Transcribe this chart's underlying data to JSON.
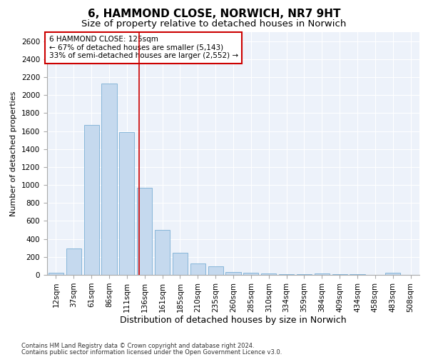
{
  "title1": "6, HAMMOND CLOSE, NORWICH, NR7 9HT",
  "title2": "Size of property relative to detached houses in Norwich",
  "xlabel": "Distribution of detached houses by size in Norwich",
  "ylabel": "Number of detached properties",
  "categories": [
    "12sqm",
    "37sqm",
    "61sqm",
    "86sqm",
    "111sqm",
    "136sqm",
    "161sqm",
    "185sqm",
    "210sqm",
    "235sqm",
    "260sqm",
    "285sqm",
    "310sqm",
    "334sqm",
    "359sqm",
    "384sqm",
    "409sqm",
    "434sqm",
    "458sqm",
    "483sqm",
    "508sqm"
  ],
  "values": [
    20,
    290,
    1670,
    2130,
    1590,
    970,
    500,
    245,
    125,
    95,
    35,
    20,
    15,
    10,
    8,
    15,
    8,
    5,
    3,
    20,
    3
  ],
  "bar_color": "#c5d9ee",
  "bar_edge_color": "#7aafd4",
  "vline_x_index": 4.67,
  "vline_color": "#cc0000",
  "annotation_text": "6 HAMMOND CLOSE: 125sqm\n← 67% of detached houses are smaller (5,143)\n33% of semi-detached houses are larger (2,552) →",
  "annotation_box_color": "#cc0000",
  "ylim": [
    0,
    2700
  ],
  "yticks": [
    0,
    200,
    400,
    600,
    800,
    1000,
    1200,
    1400,
    1600,
    1800,
    2000,
    2200,
    2400,
    2600
  ],
  "footer1": "Contains HM Land Registry data © Crown copyright and database right 2024.",
  "footer2": "Contains public sector information licensed under the Open Government Licence v3.0.",
  "bg_color": "#edf2fa",
  "grid_color": "#ffffff",
  "title1_fontsize": 11,
  "title2_fontsize": 9.5,
  "tick_fontsize": 7.5,
  "xlabel_fontsize": 9,
  "ylabel_fontsize": 8,
  "annotation_fontsize": 7.5,
  "footer_fontsize": 6
}
